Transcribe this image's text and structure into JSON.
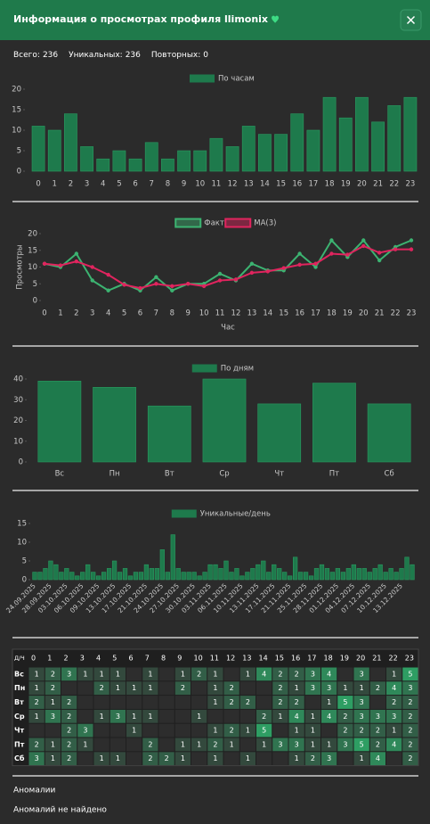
{
  "header": {
    "title": "Информация о просмотрах профиля llimonix"
  },
  "stats": [
    {
      "label": "Всего:",
      "value": 236
    },
    {
      "label": "Уникальных:",
      "value": 236
    },
    {
      "label": "Повторных:",
      "value": 0
    }
  ],
  "chart_data": [
    {
      "type": "bar",
      "categories": [
        0,
        1,
        2,
        3,
        4,
        5,
        6,
        7,
        8,
        9,
        10,
        11,
        12,
        13,
        14,
        15,
        16,
        17,
        18,
        19,
        20,
        21,
        22,
        23
      ],
      "series": [
        {
          "name": "По часам",
          "color": "#1e7a4c",
          "values": [
            11,
            10,
            14,
            6,
            3,
            5,
            3,
            7,
            3,
            5,
            5,
            8,
            6,
            11,
            9,
            9,
            14,
            10,
            18,
            13,
            18,
            12,
            16,
            18
          ]
        }
      ],
      "ylim": [
        0,
        20
      ],
      "yticks": [
        0,
        5,
        10,
        15,
        20
      ]
    },
    {
      "type": "line",
      "categories": [
        0,
        1,
        2,
        3,
        4,
        5,
        6,
        7,
        8,
        9,
        10,
        11,
        12,
        13,
        14,
        15,
        16,
        17,
        18,
        19,
        20,
        21,
        22,
        23
      ],
      "series": [
        {
          "name": "Факт",
          "color": "#3cb371",
          "values": [
            11,
            10,
            14,
            6,
            3,
            5,
            3,
            7,
            3,
            5,
            5,
            8,
            6,
            11,
            9,
            9,
            14,
            10,
            18,
            13,
            18,
            12,
            16,
            18
          ]
        },
        {
          "name": "MA(3)",
          "color": "#e0245e",
          "values": [
            11,
            10.5,
            11.7,
            10,
            7.7,
            4.7,
            3.7,
            5,
            4.3,
            5,
            4.3,
            6,
            6.3,
            8.3,
            8.7,
            9.7,
            10.7,
            11,
            14,
            13.7,
            16.3,
            14.3,
            15.3,
            15.3
          ]
        }
      ],
      "ylabel": "Просмотры",
      "xlabel": "Час",
      "ylim": [
        0,
        20
      ],
      "yticks": [
        0,
        5,
        10,
        15,
        20
      ]
    },
    {
      "type": "bar",
      "categories": [
        "Вс",
        "Пн",
        "Вт",
        "Ср",
        "Чт",
        "Пт",
        "Сб"
      ],
      "series": [
        {
          "name": "По дням",
          "color": "#1e7a4c",
          "values": [
            39,
            36,
            27,
            40,
            28,
            38,
            28
          ]
        }
      ],
      "ylim": [
        0,
        40
      ],
      "yticks": [
        0,
        10,
        20,
        30,
        40
      ]
    },
    {
      "type": "bar",
      "categories": [
        "24.09.2025",
        null,
        null,
        "28.09.2025",
        null,
        null,
        "03.10.2025",
        null,
        null,
        "06.10.2025",
        null,
        null,
        "09.10.2025",
        null,
        null,
        "13.10.2025",
        null,
        null,
        "17.10.2025",
        null,
        null,
        "21.10.2025",
        null,
        null,
        "24.10.2025",
        null,
        null,
        "27.10.2025",
        null,
        null,
        "30.10.2025",
        null,
        null,
        "03.11.2025",
        null,
        null,
        "06.11.2025",
        null,
        null,
        "10.11.2025",
        null,
        null,
        "13.11.2025",
        null,
        null,
        "17.11.2025",
        null,
        null,
        "21.11.2025",
        null,
        null,
        "25.11.2025",
        null,
        null,
        "28.11.2025",
        null,
        null,
        "01.12.2025",
        null,
        null,
        "04.12.2025",
        null,
        null,
        "07.12.2025",
        null,
        null,
        "10.12.2025",
        null,
        null,
        "13.12.2025",
        null,
        null
      ],
      "series": [
        {
          "name": "Уникальные/день",
          "color": "#1e7a4c",
          "values": [
            2,
            2,
            3,
            5,
            4,
            2,
            3,
            2,
            1,
            2,
            4,
            2,
            1,
            2,
            3,
            5,
            2,
            3,
            1,
            2,
            2,
            4,
            3,
            3,
            8,
            2,
            12,
            3,
            2,
            2,
            2,
            1,
            2,
            4,
            4,
            3,
            5,
            2,
            3,
            1,
            2,
            3,
            4,
            5,
            2,
            4,
            3,
            2,
            1,
            6,
            2,
            2,
            1,
            3,
            4,
            3,
            2,
            3,
            2,
            3,
            4,
            3,
            3,
            2,
            3,
            4,
            2,
            3,
            2,
            3,
            6,
            4
          ]
        }
      ],
      "ylim": [
        0,
        15
      ],
      "yticks": [
        0,
        5,
        10,
        15
      ]
    },
    {
      "type": "heatmap",
      "corner": "Д/Ч",
      "x": [
        0,
        1,
        2,
        3,
        4,
        5,
        6,
        7,
        8,
        9,
        10,
        11,
        12,
        13,
        14,
        15,
        16,
        17,
        18,
        19,
        20,
        21,
        22,
        23
      ],
      "y": [
        "Вс",
        "Пн",
        "Вт",
        "Ср",
        "Чт",
        "Пт",
        "Сб"
      ],
      "color": "#2e9e63",
      "values": [
        [
          1,
          2,
          3,
          1,
          1,
          1,
          null,
          1,
          null,
          1,
          2,
          1,
          null,
          1,
          4,
          2,
          2,
          3,
          4,
          null,
          3,
          null,
          1,
          5
        ],
        [
          1,
          2,
          null,
          null,
          2,
          1,
          1,
          1,
          null,
          2,
          null,
          1,
          2,
          null,
          null,
          2,
          1,
          3,
          3,
          1,
          1,
          2,
          4,
          3
        ],
        [
          2,
          1,
          2,
          null,
          null,
          null,
          null,
          null,
          null,
          null,
          null,
          1,
          2,
          2,
          null,
          2,
          2,
          null,
          1,
          5,
          3,
          null,
          2,
          2
        ],
        [
          1,
          3,
          2,
          null,
          1,
          3,
          1,
          1,
          null,
          null,
          1,
          null,
          null,
          null,
          2,
          1,
          4,
          1,
          4,
          2,
          3,
          3,
          3,
          2
        ],
        [
          null,
          null,
          2,
          3,
          null,
          null,
          1,
          null,
          null,
          null,
          null,
          1,
          2,
          1,
          5,
          null,
          1,
          1,
          null,
          2,
          2,
          2,
          1,
          2
        ],
        [
          2,
          1,
          2,
          1,
          null,
          null,
          null,
          2,
          null,
          1,
          1,
          2,
          1,
          null,
          1,
          3,
          3,
          1,
          1,
          3,
          5,
          2,
          4,
          2
        ],
        [
          3,
          1,
          2,
          null,
          1,
          1,
          null,
          2,
          2,
          1,
          null,
          1,
          null,
          1,
          null,
          null,
          1,
          2,
          3,
          null,
          1,
          4,
          null,
          2
        ]
      ]
    }
  ],
  "anomalies": {
    "title": "Аномалии",
    "text": "Аномалий не найдено"
  }
}
